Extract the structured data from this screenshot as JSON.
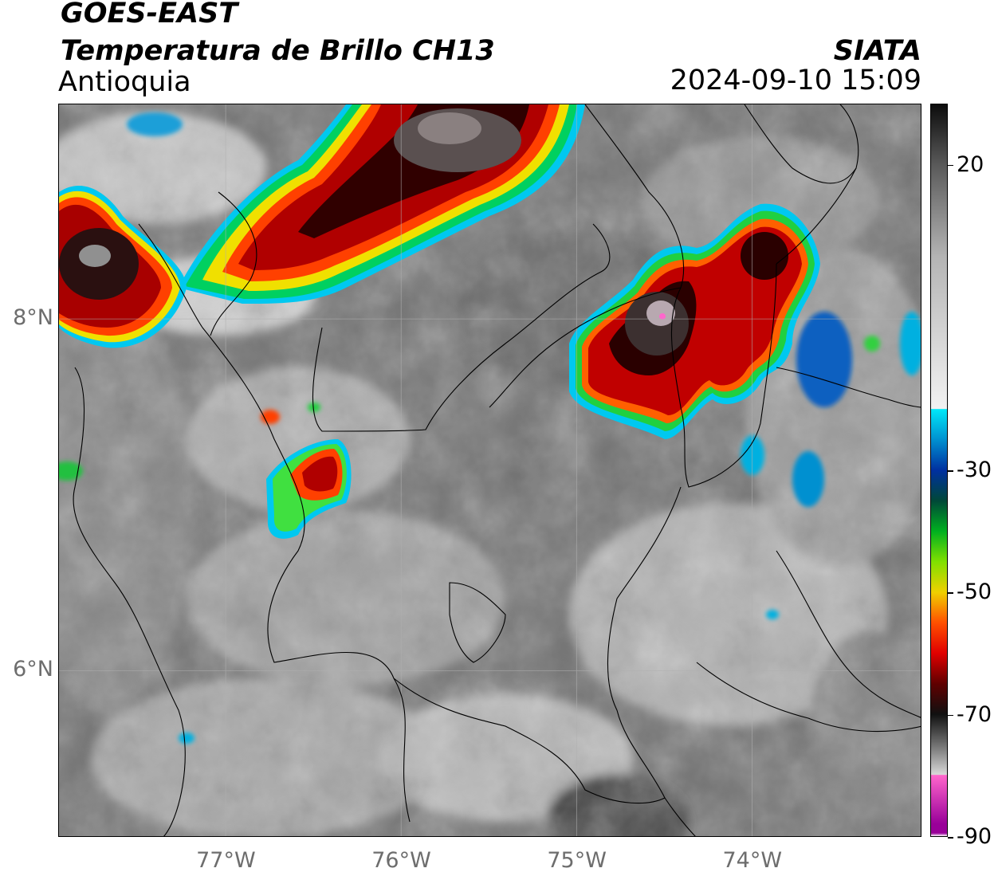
{
  "header": {
    "satellite": "GOES-EAST",
    "product": "Temperatura de Brillo CH13",
    "region": "Antioquia",
    "organization": "SIATA",
    "datetime": "2024-09-10 15:09"
  },
  "map": {
    "lat_labels": [
      "8°N",
      "6°N"
    ],
    "lon_labels": [
      "77°W",
      "76°W",
      "75°W",
      "74°W"
    ],
    "lat_ticks": [
      8,
      6
    ],
    "lon_ticks": [
      -77,
      -76,
      -75,
      -74
    ],
    "extent": {
      "lon_min": -77.95,
      "lon_max": -73.03,
      "lat_min": 5.05,
      "lat_max": 9.22
    },
    "colors": {
      "warm_surface": "#6f6f6f",
      "cold_cloud_ring": "#00c8f0",
      "deep_convection_core": "#1a0000",
      "coldest_tops": "#ff66cc",
      "borders": "#000000"
    }
  },
  "colorbar": {
    "labels": [
      "20",
      "-30",
      "-50",
      "-70",
      "-90"
    ],
    "values": [
      20,
      -30,
      -50,
      -70,
      -90
    ],
    "range": [
      -90,
      30
    ],
    "unit_hint": "°C"
  }
}
